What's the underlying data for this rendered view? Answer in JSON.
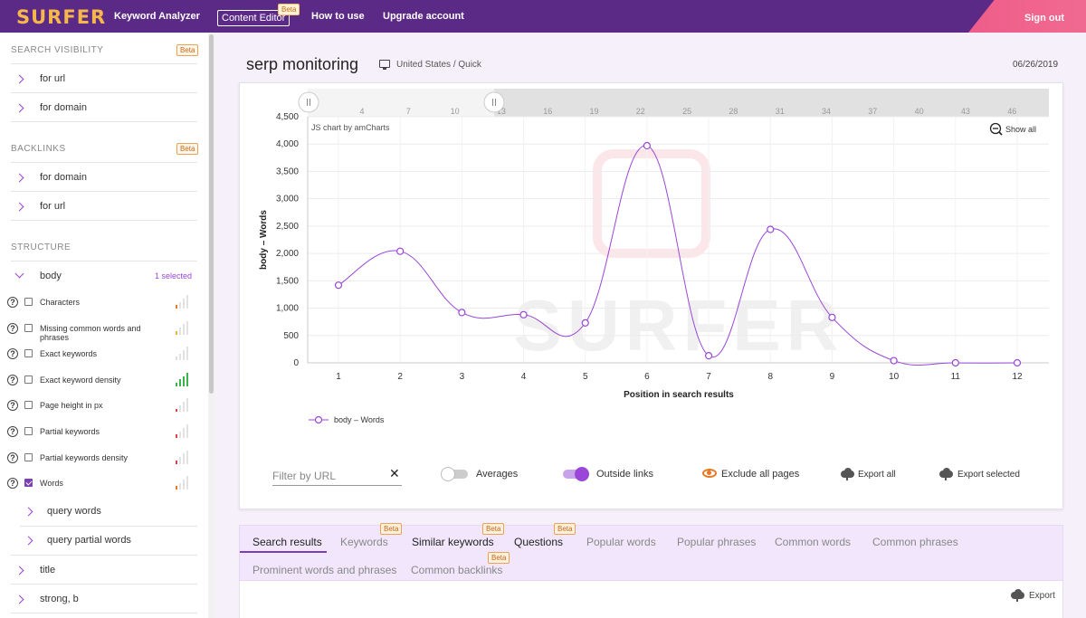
{
  "topbar": {
    "logo": "SURFER",
    "nav": [
      "Keyword Analyzer",
      "Content Editor",
      "How to use",
      "Upgrade account"
    ],
    "nav_badge": "Beta",
    "signout": "Sign out"
  },
  "sidebar": {
    "search_visibility": {
      "title": "SEARCH VISIBILITY",
      "badge": "Beta",
      "items": [
        "for url",
        "for domain"
      ]
    },
    "backlinks": {
      "title": "BACKLINKS",
      "badge": "Beta",
      "items": [
        "for domain",
        "for url"
      ]
    },
    "structure": {
      "title": "STRUCTURE",
      "body_label": "body",
      "selected_count": "1 selected",
      "metrics": [
        {
          "label": "Characters",
          "checked": false,
          "bar_color": "#e87722"
        },
        {
          "label": "Missing common words and phrases",
          "checked": false,
          "bar_color": "#f0b030"
        },
        {
          "label": "Exact keywords",
          "checked": false,
          "bar_color": "#dddddd"
        },
        {
          "label": "Exact keyword density",
          "checked": false,
          "bar_color": "#3bb44a"
        },
        {
          "label": "Page height in px",
          "checked": false,
          "bar_color": "#e04040"
        },
        {
          "label": "Partial keywords",
          "checked": false,
          "bar_color": "#e04040"
        },
        {
          "label": "Partial keywords density",
          "checked": false,
          "bar_color": "#e04040"
        },
        {
          "label": "Words",
          "checked": true,
          "bar_color": "#e87722"
        }
      ],
      "sub_items": [
        "query words",
        "query partial words"
      ],
      "more_items": [
        "title",
        "strong, b"
      ]
    }
  },
  "header": {
    "title": "serp monitoring",
    "location": "United States / Quick",
    "date": "06/26/2019"
  },
  "chart_data": {
    "type": "line",
    "title": "",
    "xlabel": "Position in search results",
    "ylabel": "body – Words",
    "x": [
      1,
      2,
      3,
      4,
      5,
      6,
      7,
      8,
      9,
      10,
      11,
      12
    ],
    "series": [
      {
        "name": "body – Words",
        "values": [
          1420,
          2040,
          920,
          880,
          730,
          3970,
          130,
          2440,
          830,
          40,
          0,
          0
        ],
        "color": "#9a46d8"
      }
    ],
    "ylim": [
      0,
      4500
    ],
    "yticks": [
      0,
      500,
      1000,
      1500,
      2000,
      2500,
      3000,
      3500,
      4000,
      4500
    ],
    "ytick_labels": [
      "0",
      "500",
      "1,000",
      "1,500",
      "2,000",
      "2,500",
      "3,000",
      "3,500",
      "4,000",
      "4,500"
    ],
    "scrollbar_ticks": [
      "4",
      "7",
      "10",
      "13",
      "16",
      "19",
      "22",
      "25",
      "28",
      "31",
      "34",
      "37",
      "40",
      "43",
      "46"
    ],
    "credit": "JS chart by amCharts",
    "zoom_label": "Show all",
    "watermark": "SURFER",
    "grid": true,
    "legend": "bottom-left"
  },
  "controls": {
    "filter_placeholder": "Filter by URL",
    "averages": "Averages",
    "outside_links": "Outside links",
    "exclude": "Exclude all pages",
    "export_all": "Export all",
    "export_selected": "Export selected",
    "accent": "#9a46d8"
  },
  "tabs": {
    "row1": [
      "Search results",
      "Keywords",
      "Similar keywords",
      "Questions",
      "Popular words",
      "Popular phrases",
      "Common words",
      "Common phrases"
    ],
    "row2": [
      "Prominent words and phrases",
      "Common backlinks"
    ],
    "beta": "Beta",
    "export": "Export"
  }
}
